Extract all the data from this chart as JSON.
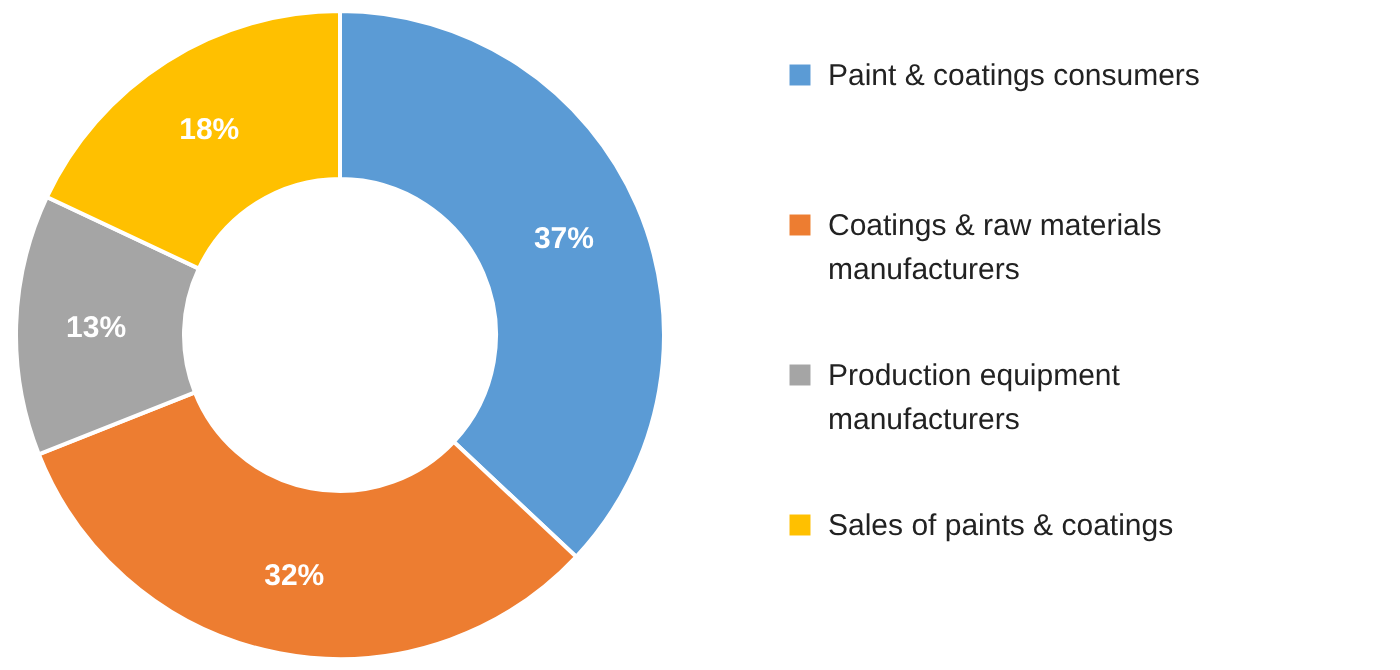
{
  "chart_data": {
    "type": "donut",
    "categories": [
      "Paint & coatings consumers",
      "Coatings & raw materials manufacturers",
      "Production equipment manufacturers",
      "Sales of paints & coatings"
    ],
    "values": [
      37,
      32,
      13,
      18
    ],
    "colors": [
      "#5b9bd5",
      "#ed7d31",
      "#a5a5a5",
      "#ffc000"
    ],
    "value_labels": [
      "37%",
      "32%",
      "13%",
      "18%"
    ],
    "legend": "right"
  }
}
